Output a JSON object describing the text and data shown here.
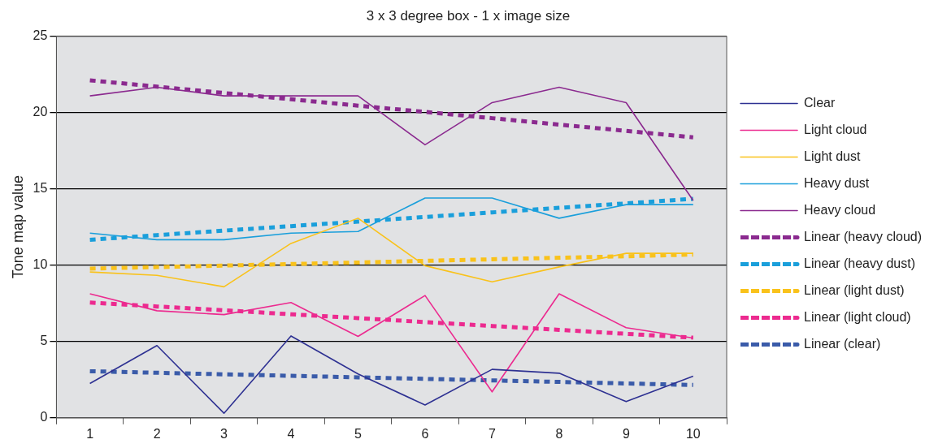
{
  "chart_data": {
    "type": "line",
    "title": "3 x 3 degree box - 1 x image size",
    "ylabel": "Tone map value",
    "categories": [
      "1",
      "2",
      "3",
      "4",
      "5",
      "6",
      "7",
      "8",
      "9",
      "10"
    ],
    "series": [
      {
        "name": "Clear",
        "color": "#2e3192",
        "line_style": "solid",
        "values": [
          2.25,
          4.73,
          0.3,
          5.36,
          2.87,
          0.84,
          3.17,
          2.92,
          1.06,
          2.73
        ]
      },
      {
        "name": "Light cloud",
        "color": "#ec2a8f",
        "line_style": "solid",
        "values": [
          8.12,
          7.01,
          6.76,
          7.55,
          5.33,
          8.01,
          1.7,
          8.12,
          5.9,
          5.22
        ]
      },
      {
        "name": "Light dust",
        "color": "#f9c21b",
        "line_style": "solid",
        "values": [
          9.55,
          9.33,
          8.58,
          11.42,
          13.07,
          9.96,
          8.9,
          9.88,
          10.77,
          10.77
        ]
      },
      {
        "name": "Heavy dust",
        "color": "#1a9fdb",
        "line_style": "solid",
        "values": [
          12.09,
          11.66,
          11.66,
          12.09,
          12.2,
          14.39,
          14.39,
          13.07,
          13.96,
          13.96
        ]
      },
      {
        "name": "Heavy cloud",
        "color": "#8b2a8f",
        "line_style": "solid",
        "values": [
          21.08,
          21.65,
          21.08,
          21.08,
          21.08,
          17.88,
          20.64,
          21.65,
          20.64,
          14.23
        ]
      },
      {
        "name": "Linear (heavy cloud)",
        "color": "#8b2a8f",
        "line_style": "dashed",
        "values": [
          22.1,
          21.69,
          21.27,
          20.86,
          20.44,
          20.03,
          19.62,
          19.2,
          18.79,
          18.37
        ]
      },
      {
        "name": "Linear (heavy dust)",
        "color": "#1a9fdb",
        "line_style": "dashed",
        "values": [
          11.66,
          11.96,
          12.26,
          12.55,
          12.85,
          13.15,
          13.45,
          13.75,
          14.04,
          14.34
        ]
      },
      {
        "name": "Linear (light dust)",
        "color": "#f9c21b",
        "line_style": "dashed",
        "values": [
          9.77,
          9.87,
          9.97,
          10.07,
          10.17,
          10.28,
          10.38,
          10.48,
          10.58,
          10.69
        ]
      },
      {
        "name": "Linear (light cloud)",
        "color": "#ec2a8f",
        "line_style": "dashed",
        "values": [
          7.55,
          7.29,
          7.04,
          6.78,
          6.53,
          6.27,
          6.01,
          5.76,
          5.5,
          5.25
        ]
      },
      {
        "name": "Linear (clear)",
        "color": "#3a5ba9",
        "line_style": "dashed",
        "values": [
          3.05,
          2.95,
          2.85,
          2.75,
          2.65,
          2.55,
          2.45,
          2.35,
          2.25,
          2.15
        ]
      }
    ],
    "ylim": [
      0,
      25
    ],
    "yticks": [
      0,
      5,
      10,
      15,
      20,
      25
    ],
    "grid": "y",
    "legend": "right",
    "marker": "none"
  }
}
